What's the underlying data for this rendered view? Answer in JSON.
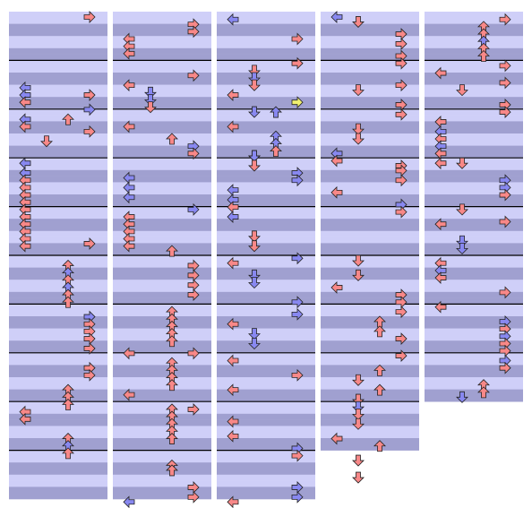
{
  "colors": {
    "stripe_light": "#cfcff8",
    "stripe_dark": "#a0a0d0",
    "measure_line": "#000000",
    "arrow_red": "#f88888",
    "arrow_blue": "#8888f0",
    "arrow_yellow": "#f0f070",
    "arrow_outline": "#222222"
  },
  "chart_data": {
    "type": "other",
    "description_free": true,
    "lane_order": [
      "L",
      "D",
      "U",
      "R"
    ],
    "columns": [
      {
        "measures": 10,
        "notes": [
          [
            "R",
            0,
            "r"
          ],
          [
            "L",
            1.45,
            "b"
          ],
          [
            "L",
            1.6,
            "b"
          ],
          [
            "R",
            1.6,
            "r"
          ],
          [
            "L",
            1.75,
            "r"
          ],
          [
            "R",
            1.9,
            "b"
          ],
          [
            "L",
            2.1,
            "b"
          ],
          [
            "L",
            2.25,
            "r"
          ],
          [
            "D",
            2.55,
            "r"
          ],
          [
            "U",
            2.1,
            "r"
          ],
          [
            "R",
            2.35,
            "r"
          ],
          [
            "L",
            3.0,
            "b"
          ],
          [
            "L",
            3.2,
            "b"
          ],
          [
            "L",
            3.35,
            "r"
          ],
          [
            "L",
            3.5,
            "r"
          ],
          [
            "L",
            3.65,
            "r"
          ],
          [
            "L",
            3.8,
            "r"
          ],
          [
            "L",
            3.95,
            "r"
          ],
          [
            "L",
            4.1,
            "r"
          ],
          [
            "L",
            4.25,
            "r"
          ],
          [
            "L",
            4.4,
            "r"
          ],
          [
            "L",
            4.55,
            "r"
          ],
          [
            "L",
            4.7,
            "r"
          ],
          [
            "R",
            4.65,
            "r"
          ],
          [
            "U",
            5.1,
            "r"
          ],
          [
            "U",
            5.25,
            "b"
          ],
          [
            "U",
            5.4,
            "r"
          ],
          [
            "U",
            5.55,
            "b"
          ],
          [
            "U",
            5.7,
            "r"
          ],
          [
            "U",
            5.85,
            "r"
          ],
          [
            "R",
            6.15,
            "b"
          ],
          [
            "R",
            6.3,
            "r"
          ],
          [
            "R",
            6.45,
            "r"
          ],
          [
            "R",
            6.6,
            "r"
          ],
          [
            "R",
            6.8,
            "r"
          ],
          [
            "R",
            7.2,
            "r"
          ],
          [
            "R",
            7.35,
            "r"
          ],
          [
            "U",
            7.65,
            "r"
          ],
          [
            "U",
            7.8,
            "r"
          ],
          [
            "U",
            7.95,
            "r"
          ],
          [
            "L",
            8.1,
            "r"
          ],
          [
            "L",
            8.25,
            "r"
          ],
          [
            "U",
            8.65,
            "r"
          ],
          [
            "U",
            8.8,
            "b"
          ],
          [
            "U",
            8.95,
            "r"
          ]
        ]
      },
      {
        "measures": 10,
        "notes": [
          [
            "R",
            0.15,
            "r"
          ],
          [
            "R",
            0.3,
            "r"
          ],
          [
            "L",
            0.45,
            "r"
          ],
          [
            "L",
            0.6,
            "r"
          ],
          [
            "L",
            0.75,
            "r"
          ],
          [
            "R",
            1.2,
            "r"
          ],
          [
            "L",
            1.4,
            "r"
          ],
          [
            "D",
            1.55,
            "b"
          ],
          [
            "D",
            1.7,
            "b"
          ],
          [
            "D",
            1.85,
            "r"
          ],
          [
            "L",
            2.25,
            "r"
          ],
          [
            "U",
            2.5,
            "r"
          ],
          [
            "R",
            2.65,
            "b"
          ],
          [
            "R",
            2.8,
            "r"
          ],
          [
            "L",
            3.3,
            "b"
          ],
          [
            "L",
            3.5,
            "b"
          ],
          [
            "L",
            3.7,
            "b"
          ],
          [
            "R",
            3.95,
            "b"
          ],
          [
            "L",
            4.1,
            "r"
          ],
          [
            "L",
            4.25,
            "r"
          ],
          [
            "L",
            4.4,
            "r"
          ],
          [
            "L",
            4.55,
            "r"
          ],
          [
            "L",
            4.7,
            "r"
          ],
          [
            "U",
            4.8,
            "r"
          ],
          [
            "R",
            5.1,
            "r"
          ],
          [
            "R",
            5.3,
            "r"
          ],
          [
            "R",
            5.5,
            "r"
          ],
          [
            "R",
            5.7,
            "r"
          ],
          [
            "U",
            6.05,
            "r"
          ],
          [
            "U",
            6.2,
            "r"
          ],
          [
            "U",
            6.35,
            "r"
          ],
          [
            "U",
            6.5,
            "r"
          ],
          [
            "U",
            6.65,
            "r"
          ],
          [
            "R",
            6.9,
            "r"
          ],
          [
            "L",
            6.9,
            "r"
          ],
          [
            "U",
            7.1,
            "r"
          ],
          [
            "U",
            7.25,
            "r"
          ],
          [
            "U",
            7.4,
            "r"
          ],
          [
            "U",
            7.55,
            "r"
          ],
          [
            "L",
            7.75,
            "r"
          ],
          [
            "R",
            8.05,
            "r"
          ],
          [
            "U",
            8.05,
            "r"
          ],
          [
            "U",
            8.2,
            "r"
          ],
          [
            "U",
            8.35,
            "r"
          ],
          [
            "U",
            8.5,
            "r"
          ],
          [
            "U",
            8.65,
            "r"
          ],
          [
            "U",
            9.2,
            "r"
          ],
          [
            "U",
            9.3,
            "r"
          ],
          [
            "R",
            9.65,
            "r"
          ],
          [
            "R",
            9.85,
            "r"
          ],
          [
            "L",
            9.95,
            "b"
          ]
        ]
      },
      {
        "measures": 10,
        "notes": [
          [
            "L",
            0.05,
            "b"
          ],
          [
            "R",
            0.45,
            "r"
          ],
          [
            "R",
            0.95,
            "r"
          ],
          [
            "D",
            1.1,
            "r"
          ],
          [
            "D",
            1.25,
            "b"
          ],
          [
            "D",
            1.4,
            "r"
          ],
          [
            "L",
            1.6,
            "r"
          ],
          [
            "R",
            1.75,
            "y"
          ],
          [
            "D",
            1.95,
            "b"
          ],
          [
            "U",
            1.95,
            "b"
          ],
          [
            "L",
            2.25,
            "r"
          ],
          [
            "U",
            2.45,
            "b"
          ],
          [
            "U",
            2.6,
            "b"
          ],
          [
            "U",
            2.75,
            "r"
          ],
          [
            "D",
            2.85,
            "r"
          ],
          [
            "D",
            2.85,
            "b"
          ],
          [
            "D",
            3.05,
            "r"
          ],
          [
            "R",
            3.2,
            "b"
          ],
          [
            "R",
            3.35,
            "b"
          ],
          [
            "L",
            3.55,
            "b"
          ],
          [
            "L",
            3.75,
            "b"
          ],
          [
            "L",
            3.9,
            "r"
          ],
          [
            "L",
            4.1,
            "b"
          ],
          [
            "D",
            4.5,
            "r"
          ],
          [
            "D",
            4.7,
            "r"
          ],
          [
            "R",
            4.95,
            "b"
          ],
          [
            "L",
            5.05,
            "r"
          ],
          [
            "D",
            5.3,
            "b"
          ],
          [
            "D",
            5.45,
            "b"
          ],
          [
            "R",
            5.85,
            "b"
          ],
          [
            "R",
            6.1,
            "b"
          ],
          [
            "L",
            6.3,
            "r"
          ],
          [
            "D",
            6.5,
            "b"
          ],
          [
            "D",
            6.7,
            "b"
          ],
          [
            "L",
            7.05,
            "r"
          ],
          [
            "R",
            7.35,
            "r"
          ],
          [
            "L",
            7.65,
            "r"
          ],
          [
            "L",
            8.3,
            "r"
          ],
          [
            "L",
            8.6,
            "r"
          ],
          [
            "R",
            8.85,
            "b"
          ],
          [
            "R",
            9.0,
            "r"
          ],
          [
            "R",
            9.65,
            "b"
          ],
          [
            "R",
            9.85,
            "b"
          ],
          [
            "L",
            9.95,
            "r"
          ]
        ]
      },
      {
        "measures": 9,
        "notes": [
          [
            "L",
            0.0,
            "b"
          ],
          [
            "D",
            0.1,
            "r"
          ],
          [
            "R",
            0.35,
            "r"
          ],
          [
            "R",
            0.55,
            "r"
          ],
          [
            "R",
            0.8,
            "r"
          ],
          [
            "R",
            0.95,
            "r"
          ],
          [
            "R",
            1.4,
            "r"
          ],
          [
            "D",
            1.5,
            "r"
          ],
          [
            "R",
            1.8,
            "r"
          ],
          [
            "R",
            2.0,
            "r"
          ],
          [
            "D",
            2.3,
            "r"
          ],
          [
            "D",
            2.5,
            "r"
          ],
          [
            "L",
            2.8,
            "b"
          ],
          [
            "L",
            2.95,
            "r"
          ],
          [
            "R",
            3.05,
            "r"
          ],
          [
            "R",
            3.15,
            "r"
          ],
          [
            "R",
            3.35,
            "r"
          ],
          [
            "L",
            3.6,
            "r"
          ],
          [
            "R",
            3.85,
            "b"
          ],
          [
            "R",
            4.0,
            "r"
          ],
          [
            "D",
            5.0,
            "r"
          ],
          [
            "D",
            5.3,
            "r"
          ],
          [
            "L",
            5.55,
            "r"
          ],
          [
            "R",
            5.7,
            "r"
          ],
          [
            "R",
            5.85,
            "r"
          ],
          [
            "R",
            6.05,
            "r"
          ],
          [
            "U",
            6.25,
            "r"
          ],
          [
            "U",
            6.45,
            "r"
          ],
          [
            "R",
            6.6,
            "r"
          ],
          [
            "R",
            6.95,
            "r"
          ],
          [
            "U",
            7.25,
            "r"
          ],
          [
            "D",
            7.45,
            "r"
          ],
          [
            "U",
            7.65,
            "r"
          ],
          [
            "D",
            7.85,
            "r"
          ],
          [
            "D",
            8.0,
            "b"
          ],
          [
            "D",
            8.15,
            "r"
          ],
          [
            "D",
            8.35,
            "r"
          ],
          [
            "L",
            8.65,
            "r"
          ],
          [
            "U",
            8.8,
            "r"
          ],
          [
            "D",
            9.1,
            "r"
          ],
          [
            "D",
            9.45,
            "r"
          ]
        ]
      },
      {
        "measures": 8,
        "notes": [
          [
            "R",
            0.05,
            "r"
          ],
          [
            "U",
            0.2,
            "r"
          ],
          [
            "U",
            0.35,
            "r"
          ],
          [
            "U",
            0.5,
            "b"
          ],
          [
            "U",
            0.65,
            "r"
          ],
          [
            "U",
            0.8,
            "r"
          ],
          [
            "R",
            1.0,
            "r"
          ],
          [
            "L",
            1.15,
            "r"
          ],
          [
            "R",
            1.35,
            "r"
          ],
          [
            "D",
            1.5,
            "r"
          ],
          [
            "R",
            1.8,
            "r"
          ],
          [
            "R",
            1.95,
            "r"
          ],
          [
            "L",
            2.15,
            "r"
          ],
          [
            "L",
            2.35,
            "b"
          ],
          [
            "L",
            2.5,
            "r"
          ],
          [
            "L",
            2.65,
            "b"
          ],
          [
            "L",
            2.8,
            "r"
          ],
          [
            "L",
            3.0,
            "r"
          ],
          [
            "D",
            3.0,
            "r"
          ],
          [
            "R",
            3.35,
            "b"
          ],
          [
            "R",
            3.5,
            "b"
          ],
          [
            "R",
            3.65,
            "r"
          ],
          [
            "D",
            3.95,
            "r"
          ],
          [
            "R",
            4.2,
            "r"
          ],
          [
            "L",
            4.25,
            "r"
          ],
          [
            "D",
            4.6,
            "b"
          ],
          [
            "D",
            4.75,
            "b"
          ],
          [
            "L",
            5.05,
            "r"
          ],
          [
            "L",
            5.2,
            "b"
          ],
          [
            "L",
            5.35,
            "r"
          ],
          [
            "R",
            5.65,
            "r"
          ],
          [
            "L",
            5.95,
            "r"
          ],
          [
            "R",
            6.25,
            "b"
          ],
          [
            "R",
            6.4,
            "r"
          ],
          [
            "R",
            6.55,
            "b"
          ],
          [
            "R",
            6.7,
            "r"
          ],
          [
            "R",
            6.85,
            "r"
          ],
          [
            "R",
            7.05,
            "b"
          ],
          [
            "R",
            7.2,
            "r"
          ],
          [
            "U",
            7.55,
            "r"
          ],
          [
            "U",
            7.7,
            "r"
          ],
          [
            "D",
            7.8,
            "b"
          ]
        ]
      }
    ]
  }
}
